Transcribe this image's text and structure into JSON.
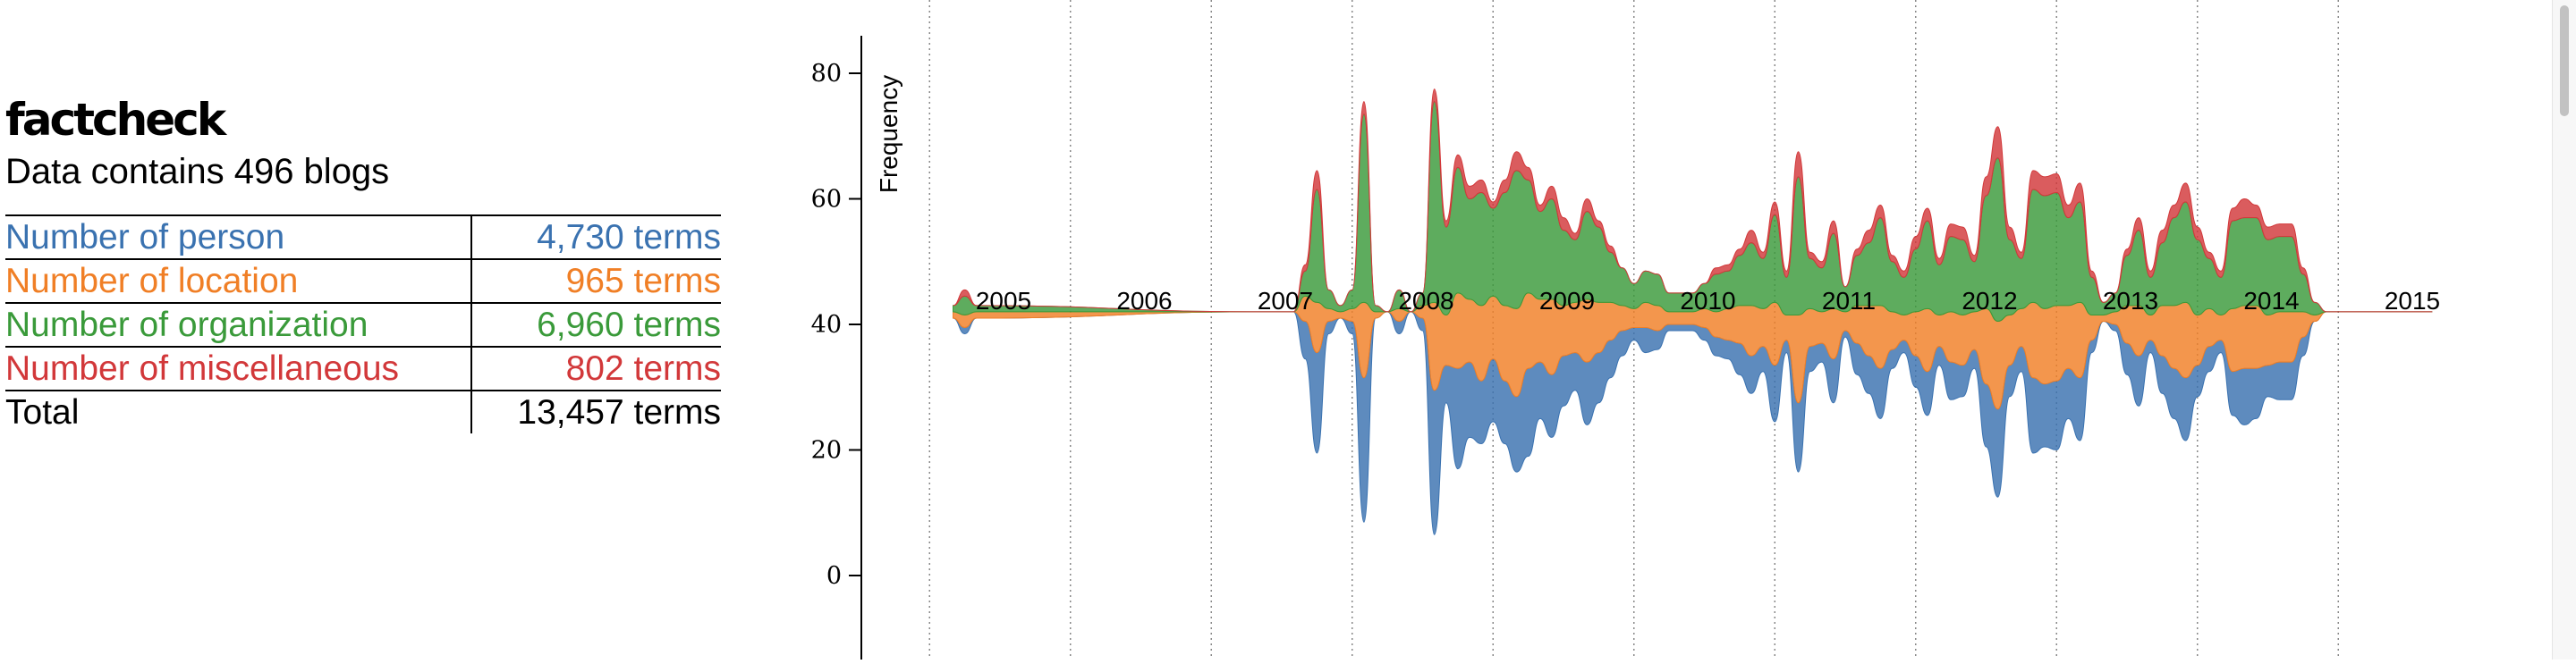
{
  "header": {
    "title": "factcheck",
    "subtitle": "Data contains 496 blogs"
  },
  "stats": [
    {
      "label": "Number of person",
      "value": "4,730 terms",
      "color": "#3a72b0"
    },
    {
      "label": "Number of location",
      "value": "965 terms",
      "color": "#f07f26"
    },
    {
      "label": "Number of organization",
      "value": "6,960 terms",
      "color": "#3a9a3a"
    },
    {
      "label": "Number of miscellaneous",
      "value": "802 terms",
      "color": "#d2383a"
    },
    {
      "label": "Total",
      "value": "13,457 terms",
      "color": "#000000"
    }
  ],
  "chart_data": {
    "type": "area",
    "ylabel": "Frequency",
    "ylim": [
      0,
      85
    ],
    "yticks": [
      0,
      20,
      40,
      60,
      80
    ],
    "xticks": [
      "2005",
      "2006",
      "2007",
      "2008",
      "2009",
      "2010",
      "2011",
      "2012",
      "2013",
      "2014",
      "2015"
    ],
    "layout": "streamgraph centered at 42",
    "grid": "vertical dotted lines at year boundaries",
    "series": [
      {
        "name": "person",
        "color": "#3a72b0",
        "x": [
          "2004-09",
          "2004-10",
          "2004-11",
          "2006-11",
          "2007-02",
          "2007-03",
          "2007-04",
          "2007-05",
          "2007-06",
          "2007-07",
          "2007-08",
          "2007-09",
          "2007-10",
          "2007-11",
          "2007-12",
          "2008-01",
          "2008-02",
          "2008-03",
          "2008-04",
          "2008-05",
          "2008-06",
          "2008-07",
          "2008-08",
          "2008-09",
          "2008-10",
          "2008-11",
          "2008-12",
          "2009-01",
          "2009-02",
          "2009-03",
          "2009-04",
          "2009-05",
          "2009-06",
          "2009-07",
          "2009-08",
          "2009-09",
          "2009-10",
          "2009-11",
          "2009-12",
          "2010-01",
          "2010-02",
          "2010-03",
          "2010-04",
          "2010-05",
          "2010-06",
          "2010-07",
          "2010-08",
          "2010-09",
          "2010-10",
          "2010-11",
          "2010-12",
          "2011-01",
          "2011-02",
          "2011-03",
          "2011-04",
          "2011-05",
          "2011-06",
          "2011-07",
          "2011-08",
          "2011-09",
          "2011-10",
          "2011-11",
          "2011-12",
          "2012-01",
          "2012-02",
          "2012-03",
          "2012-04",
          "2012-05",
          "2012-06",
          "2012-07",
          "2012-08",
          "2012-09",
          "2012-10",
          "2012-11",
          "2012-12",
          "2013-01",
          "2013-02",
          "2013-03",
          "2013-04",
          "2013-05",
          "2013-06",
          "2013-07",
          "2013-08",
          "2013-09",
          "2013-10",
          "2013-11",
          "2013-12",
          "2014-01",
          "2014-02",
          "2014-03",
          "2014-04",
          "2014-05",
          "2014-06",
          "2014-07",
          "2014-08",
          "2014-09",
          "2014-10",
          "2014-11",
          "2014-12",
          "2015-01",
          "2015-02",
          "2015-03"
        ],
        "values": [
          0,
          1,
          0,
          0,
          0,
          6,
          16,
          2,
          0,
          2,
          23,
          0,
          0,
          2,
          0,
          2,
          23,
          6,
          16,
          12,
          10,
          10,
          10,
          12,
          14,
          9,
          10,
          8,
          6,
          10,
          8,
          6,
          4,
          2,
          4,
          3,
          1,
          1,
          1,
          2,
          3,
          3,
          5,
          6,
          4,
          9,
          2,
          11,
          4,
          3,
          7,
          1,
          5,
          6,
          8,
          3,
          2,
          5,
          7,
          3,
          6,
          5,
          3,
          10,
          14,
          5,
          4,
          12,
          10,
          11,
          8,
          10,
          2,
          0,
          1,
          5,
          8,
          2,
          6,
          8,
          10,
          5,
          4,
          2,
          7,
          9,
          8,
          5,
          6,
          6,
          3,
          0,
          0,
          0,
          0,
          0,
          0,
          0,
          0,
          0,
          0,
          0
        ]
      },
      {
        "name": "location",
        "color": "#f07f26",
        "x": [
          "2004-09",
          "2004-10",
          "2004-11",
          "2006-11",
          "2007-02",
          "2007-03",
          "2007-04",
          "2007-05",
          "2007-06",
          "2007-07",
          "2007-08",
          "2007-09",
          "2007-10",
          "2007-11",
          "2007-12",
          "2008-01",
          "2008-02",
          "2008-03",
          "2008-04",
          "2008-05",
          "2008-06",
          "2008-07",
          "2008-08",
          "2008-09",
          "2008-10",
          "2008-11",
          "2008-12",
          "2009-01",
          "2009-02",
          "2009-03",
          "2009-04",
          "2009-05",
          "2009-06",
          "2009-07",
          "2009-08",
          "2009-09",
          "2009-10",
          "2009-11",
          "2009-12",
          "2010-01",
          "2010-02",
          "2010-03",
          "2010-04",
          "2010-05",
          "2010-06",
          "2010-07",
          "2010-08",
          "2010-09",
          "2010-10",
          "2010-11",
          "2010-12",
          "2011-01",
          "2011-02",
          "2011-03",
          "2011-04",
          "2011-05",
          "2011-06",
          "2011-07",
          "2011-08",
          "2011-09",
          "2011-10",
          "2011-11",
          "2011-12",
          "2012-01",
          "2012-02",
          "2012-03",
          "2012-04",
          "2012-05",
          "2012-06",
          "2012-07",
          "2012-08",
          "2012-09",
          "2012-10",
          "2012-11",
          "2012-12",
          "2013-01",
          "2013-02",
          "2013-03",
          "2013-04",
          "2013-05",
          "2013-06",
          "2013-07",
          "2013-08",
          "2013-09",
          "2013-10",
          "2013-11",
          "2013-12",
          "2014-01",
          "2014-02",
          "2014-03",
          "2014-04",
          "2014-05",
          "2014-06",
          "2014-07",
          "2014-08",
          "2014-09",
          "2014-10",
          "2014-11",
          "2014-12",
          "2015-01",
          "2015-02",
          "2015-03"
        ],
        "values": [
          1,
          2,
          1,
          0,
          0,
          4,
          8,
          2,
          1,
          2,
          12,
          1,
          0,
          2,
          0,
          2,
          14,
          8,
          12,
          10,
          12,
          10,
          12,
          14,
          12,
          10,
          12,
          8,
          8,
          10,
          8,
          6,
          4,
          3,
          4,
          4,
          2,
          2,
          2,
          3,
          4,
          5,
          6,
          8,
          6,
          10,
          4,
          14,
          6,
          5,
          8,
          3,
          6,
          8,
          10,
          6,
          4,
          7,
          10,
          5,
          8,
          8,
          6,
          12,
          14,
          8,
          6,
          12,
          12,
          12,
          10,
          12,
          4,
          1,
          2,
          6,
          8,
          4,
          8,
          10,
          12,
          8,
          6,
          4,
          10,
          10,
          10,
          8,
          8,
          8,
          4,
          1,
          0,
          0,
          0,
          0,
          0,
          0,
          0,
          0,
          0,
          0
        ]
      },
      {
        "name": "organization",
        "color": "#3a9a3a",
        "x": [
          "2004-09",
          "2004-10",
          "2004-11",
          "2006-11",
          "2007-02",
          "2007-03",
          "2007-04",
          "2007-05",
          "2007-06",
          "2007-07",
          "2007-08",
          "2007-09",
          "2007-10",
          "2007-11",
          "2007-12",
          "2008-01",
          "2008-02",
          "2008-03",
          "2008-04",
          "2008-05",
          "2008-06",
          "2008-07",
          "2008-08",
          "2008-09",
          "2008-10",
          "2008-11",
          "2008-12",
          "2009-01",
          "2009-02",
          "2009-03",
          "2009-04",
          "2009-05",
          "2009-06",
          "2009-07",
          "2009-08",
          "2009-09",
          "2009-10",
          "2009-11",
          "2009-12",
          "2010-01",
          "2010-02",
          "2010-03",
          "2010-04",
          "2010-05",
          "2010-06",
          "2010-07",
          "2010-08",
          "2010-09",
          "2010-10",
          "2010-11",
          "2010-12",
          "2011-01",
          "2011-02",
          "2011-03",
          "2011-04",
          "2011-05",
          "2011-06",
          "2011-07",
          "2011-08",
          "2011-09",
          "2011-10",
          "2011-11",
          "2011-12",
          "2012-01",
          "2012-02",
          "2012-03",
          "2012-04",
          "2012-05",
          "2012-06",
          "2012-07",
          "2012-08",
          "2012-09",
          "2012-10",
          "2012-11",
          "2012-12",
          "2013-01",
          "2013-02",
          "2013-03",
          "2013-04",
          "2013-05",
          "2013-06",
          "2013-07",
          "2013-08",
          "2013-09",
          "2013-10",
          "2013-11",
          "2013-12",
          "2014-01",
          "2014-02",
          "2014-03",
          "2014-04",
          "2014-05",
          "2014-06",
          "2014-07",
          "2014-08",
          "2014-09",
          "2014-10",
          "2014-11",
          "2014-12",
          "2015-01",
          "2015-02",
          "2015-03"
        ],
        "values": [
          1,
          3,
          1,
          0,
          0,
          4,
          18,
          3,
          1,
          3,
          30,
          1,
          0,
          3,
          0,
          2,
          32,
          14,
          20,
          16,
          18,
          14,
          18,
          22,
          18,
          14,
          16,
          12,
          10,
          14,
          12,
          8,
          6,
          4,
          5,
          5,
          3,
          3,
          3,
          4,
          6,
          6,
          8,
          10,
          8,
          14,
          6,
          22,
          8,
          7,
          12,
          4,
          8,
          10,
          14,
          8,
          6,
          10,
          14,
          8,
          12,
          12,
          8,
          18,
          26,
          12,
          8,
          18,
          18,
          18,
          14,
          16,
          6,
          2,
          3,
          8,
          12,
          6,
          10,
          14,
          16,
          12,
          8,
          6,
          14,
          14,
          14,
          12,
          12,
          12,
          6,
          2,
          0,
          0,
          0,
          0,
          0,
          0,
          0,
          0,
          0,
          0
        ]
      },
      {
        "name": "miscellaneous",
        "color": "#d2383a",
        "x": [
          "2004-09",
          "2004-10",
          "2004-11",
          "2006-11",
          "2007-02",
          "2007-03",
          "2007-04",
          "2007-05",
          "2007-06",
          "2007-07",
          "2007-08",
          "2007-09",
          "2007-10",
          "2007-11",
          "2007-12",
          "2008-01",
          "2008-02",
          "2008-03",
          "2008-04",
          "2008-05",
          "2008-06",
          "2008-07",
          "2008-08",
          "2008-09",
          "2008-10",
          "2008-11",
          "2008-12",
          "2009-01",
          "2009-02",
          "2009-03",
          "2009-04",
          "2009-05",
          "2009-06",
          "2009-07",
          "2009-08",
          "2009-09",
          "2009-10",
          "2009-11",
          "2009-12",
          "2010-01",
          "2010-02",
          "2010-03",
          "2010-04",
          "2010-05",
          "2010-06",
          "2010-07",
          "2010-08",
          "2010-09",
          "2010-10",
          "2010-11",
          "2010-12",
          "2011-01",
          "2011-02",
          "2011-03",
          "2011-04",
          "2011-05",
          "2011-06",
          "2011-07",
          "2011-08",
          "2011-09",
          "2011-10",
          "2011-11",
          "2011-12",
          "2012-01",
          "2012-02",
          "2012-03",
          "2012-04",
          "2012-05",
          "2012-06",
          "2012-07",
          "2012-08",
          "2012-09",
          "2012-10",
          "2012-11",
          "2012-12",
          "2013-01",
          "2013-02",
          "2013-03",
          "2013-04",
          "2013-05",
          "2013-06",
          "2013-07",
          "2013-08",
          "2013-09",
          "2013-10",
          "2013-11",
          "2013-12",
          "2014-01",
          "2014-02",
          "2014-03",
          "2014-04",
          "2014-05",
          "2014-06",
          "2014-07",
          "2014-08",
          "2014-09",
          "2014-10",
          "2014-11",
          "2014-12",
          "2015-01",
          "2015-02",
          "2015-03"
        ],
        "values": [
          0,
          1,
          0,
          0,
          0,
          1,
          3,
          0,
          0,
          0,
          2,
          0,
          0,
          0,
          0,
          0,
          2,
          1,
          2,
          2,
          2,
          1,
          2,
          3,
          2,
          1,
          2,
          2,
          1,
          2,
          1,
          1,
          0,
          0,
          0,
          0,
          0,
          0,
          0,
          0,
          1,
          1,
          1,
          2,
          1,
          2,
          1,
          4,
          1,
          1,
          2,
          0,
          1,
          2,
          2,
          1,
          1,
          2,
          2,
          1,
          2,
          2,
          1,
          3,
          5,
          2,
          1,
          3,
          3,
          3,
          2,
          3,
          1,
          0,
          0,
          1,
          2,
          1,
          2,
          2,
          3,
          2,
          1,
          1,
          2,
          3,
          2,
          2,
          2,
          2,
          1,
          0,
          0,
          0,
          0,
          0,
          0,
          0,
          0,
          0,
          0,
          0
        ]
      }
    ]
  }
}
